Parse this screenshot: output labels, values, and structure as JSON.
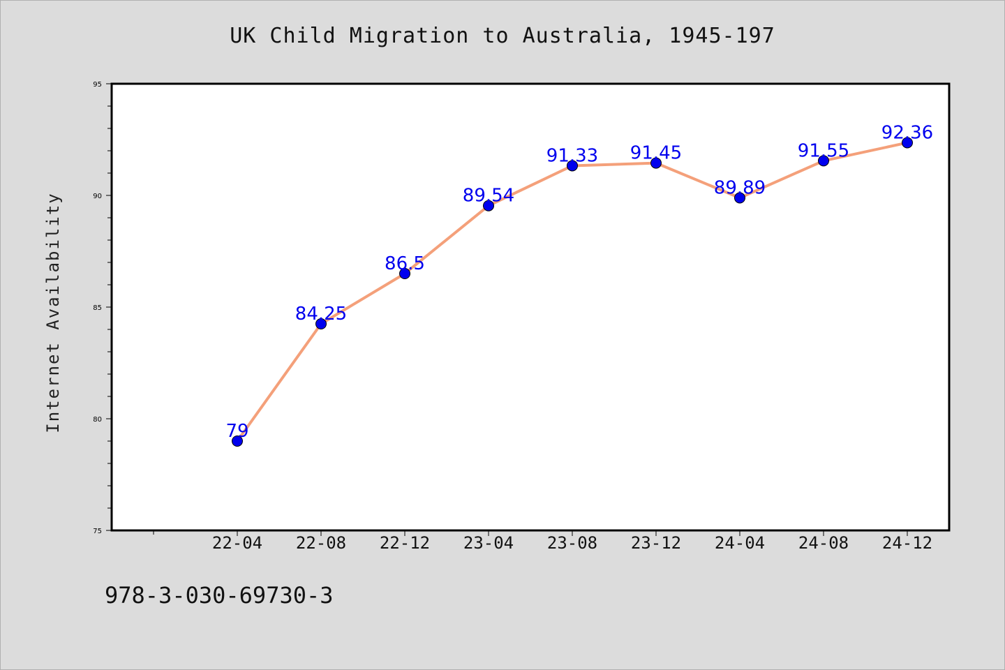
{
  "chart_data": {
    "type": "line",
    "title": "UK Child Migration to Australia, 1945-197",
    "xlabel": "",
    "ylabel": "Internet Availability",
    "ylim": [
      75,
      95
    ],
    "yticks": [
      75,
      80,
      85,
      90,
      95
    ],
    "grid": false,
    "legend": "none",
    "categories": [
      "22-04",
      "22-08",
      "22-12",
      "23-04",
      "23-08",
      "23-12",
      "24-04",
      "24-08",
      "24-12"
    ],
    "series": [
      {
        "values": [
          79,
          84.25,
          86.5,
          89.54,
          91.33,
          91.45,
          89.89,
          91.55,
          92.36
        ],
        "labels": [
          "79",
          "84.25",
          "86.5",
          "89.54",
          "91.33",
          "91.45",
          "89.89",
          "91.55",
          "92.36"
        ],
        "line_color": "#f4a07a",
        "marker_color": "#0000ee",
        "label_color": "#0000ee"
      }
    ]
  },
  "footer": {
    "code": "978-3-030-69730-3"
  }
}
